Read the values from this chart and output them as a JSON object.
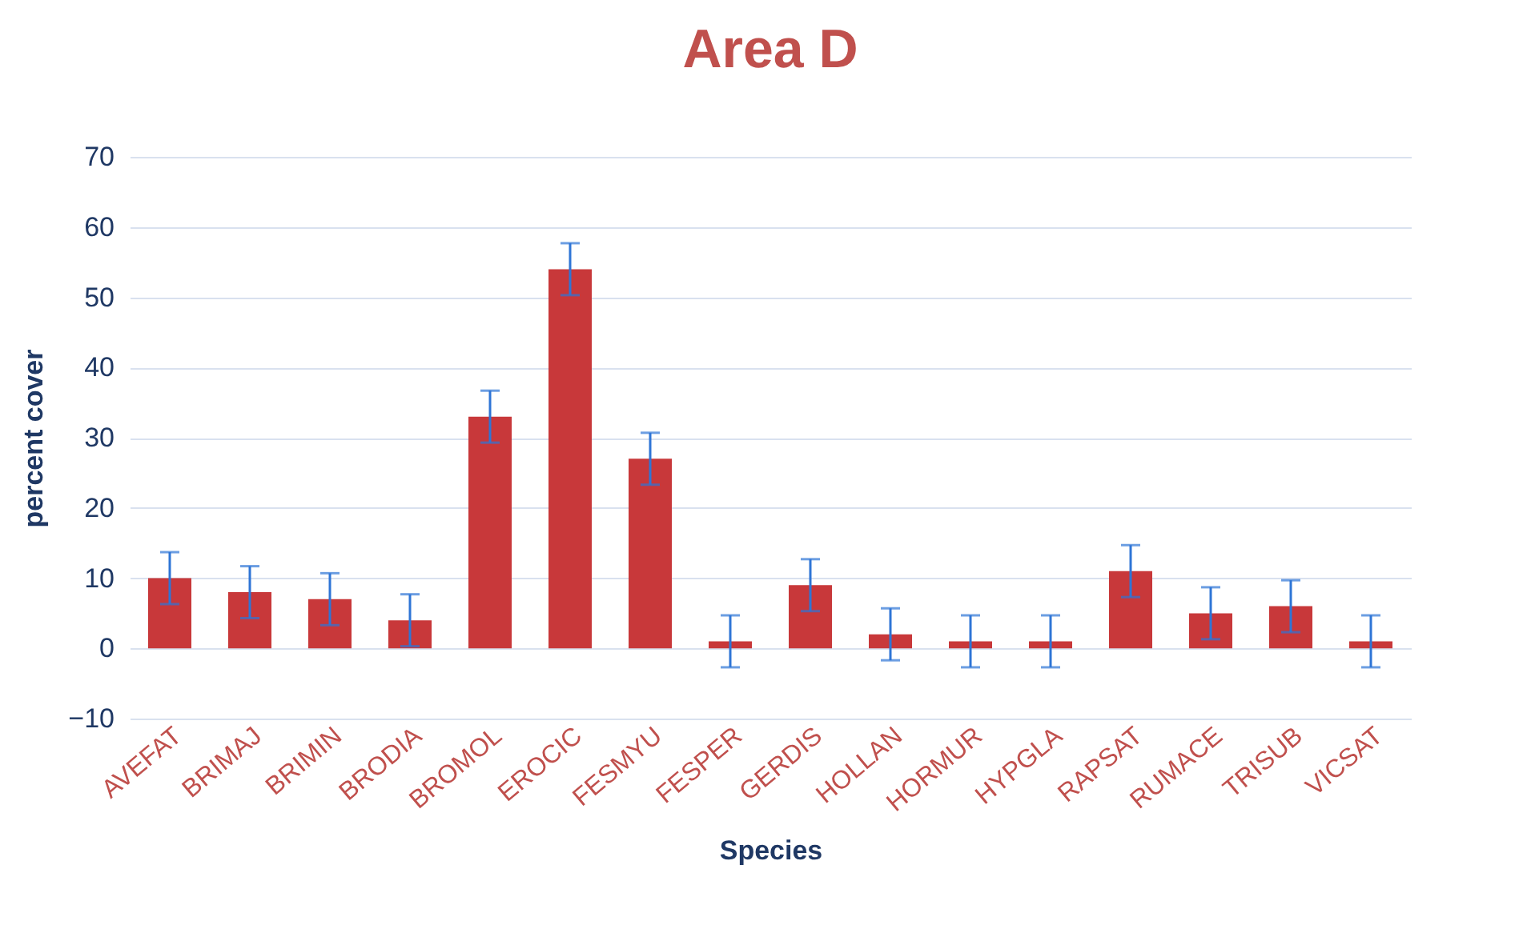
{
  "chart_data": {
    "type": "bar",
    "title": "Area D",
    "xlabel": "Species",
    "ylabel": "percent cover",
    "categories": [
      "AVEFAT",
      "BRIMAJ",
      "BRIMIN",
      "BRODIA",
      "BROMOL",
      "EROCIC",
      "FESMYU",
      "FESPER",
      "GERDIS",
      "HOLLAN",
      "HORMUR",
      "HYPGLA",
      "RAPSAT",
      "RUMACE",
      "TRISUB",
      "VICSAT"
    ],
    "values": [
      10,
      8,
      7,
      4,
      33,
      54,
      27,
      1,
      9,
      2,
      1,
      1,
      11,
      5,
      6,
      1
    ],
    "errors": [
      3.7,
      3.7,
      3.7,
      3.7,
      3.7,
      3.7,
      3.7,
      3.7,
      3.7,
      3.7,
      3.7,
      3.7,
      3.7,
      3.7,
      3.7,
      3.7
    ],
    "color": "#c8383a",
    "ylim": [
      -10,
      70
    ],
    "yticks": [
      -10,
      0,
      10,
      20,
      30,
      40,
      50,
      60,
      70
    ],
    "grid": "y"
  }
}
